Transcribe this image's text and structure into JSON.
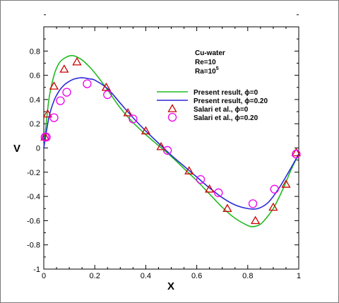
{
  "chart_data": {
    "type": "line",
    "xlabel": "X",
    "ylabel": "V",
    "xlim": [
      0,
      1
    ],
    "ylim": [
      -1,
      1
    ],
    "x_ticks": [
      "0",
      "0.2",
      "0.4",
      "0.6",
      "0.8",
      "1"
    ],
    "y_ticks": [
      "-1",
      "-0.8",
      "-0.6",
      "-0.4",
      "-0.2",
      "0",
      "0.2",
      "0.4",
      "0.6",
      "0.8"
    ],
    "x_tick_values": [
      0,
      0.2,
      0.4,
      0.6,
      0.8,
      1.0
    ],
    "y_tick_values": [
      -1,
      -0.8,
      -0.6,
      -0.4,
      -0.2,
      0,
      0.2,
      0.4,
      0.6,
      0.8
    ],
    "annotation": [
      "Cu-water",
      "Re=10",
      "Ra=10",
      "5"
    ],
    "legend_position": "upper-right",
    "series": [
      {
        "name": "Present result,  ϕ=0",
        "kind": "line",
        "color": "#22bb22",
        "x": [
          0,
          0.02,
          0.04,
          0.06,
          0.08,
          0.1,
          0.12,
          0.14,
          0.16,
          0.2,
          0.25,
          0.3,
          0.35,
          0.4,
          0.45,
          0.5,
          0.55,
          0.6,
          0.65,
          0.7,
          0.75,
          0.8,
          0.82,
          0.84,
          0.86,
          0.9,
          0.94,
          0.97,
          1.0
        ],
        "y": [
          0.0,
          0.4,
          0.6,
          0.7,
          0.74,
          0.76,
          0.76,
          0.74,
          0.71,
          0.62,
          0.48,
          0.33,
          0.21,
          0.11,
          0.02,
          -0.07,
          -0.17,
          -0.27,
          -0.38,
          -0.49,
          -0.58,
          -0.64,
          -0.65,
          -0.64,
          -0.61,
          -0.5,
          -0.33,
          -0.18,
          -0.05
        ]
      },
      {
        "name": "Present result,  ϕ=0.20",
        "kind": "line",
        "color": "#2a2ad8",
        "x": [
          0,
          0.02,
          0.04,
          0.06,
          0.08,
          0.1,
          0.12,
          0.15,
          0.18,
          0.2,
          0.25,
          0.3,
          0.35,
          0.4,
          0.45,
          0.5,
          0.55,
          0.6,
          0.65,
          0.7,
          0.75,
          0.8,
          0.84,
          0.88,
          0.92,
          0.96,
          1.0
        ],
        "y": [
          0.0,
          0.25,
          0.39,
          0.47,
          0.52,
          0.55,
          0.57,
          0.58,
          0.57,
          0.56,
          0.49,
          0.37,
          0.25,
          0.14,
          0.04,
          -0.06,
          -0.15,
          -0.24,
          -0.33,
          -0.41,
          -0.47,
          -0.5,
          -0.5,
          -0.45,
          -0.34,
          -0.2,
          -0.05
        ]
      },
      {
        "name": "Salari et al.,  ϕ=0",
        "kind": "marker",
        "marker": "triangle",
        "color": "#cc0000",
        "x": [
          0.005,
          0.015,
          0.04,
          0.08,
          0.13,
          0.245,
          0.33,
          0.4,
          0.46,
          0.57,
          0.65,
          0.72,
          0.83,
          0.9,
          0.95,
          0.99
        ],
        "y": [
          0.09,
          0.28,
          0.51,
          0.65,
          0.71,
          0.5,
          0.29,
          0.14,
          0.01,
          -0.19,
          -0.34,
          -0.5,
          -0.6,
          -0.49,
          -0.3,
          -0.04
        ]
      },
      {
        "name": "Salari et al.,  ϕ=0.20",
        "kind": "marker",
        "marker": "circle",
        "color": "#ee00ee",
        "x": [
          0.005,
          0.01,
          0.04,
          0.065,
          0.09,
          0.17,
          0.25,
          0.35,
          0.485,
          0.615,
          0.685,
          0.82,
          0.905,
          0.99
        ],
        "y": [
          0.09,
          0.09,
          0.25,
          0.39,
          0.46,
          0.53,
          0.44,
          0.24,
          -0.02,
          -0.26,
          -0.37,
          -0.46,
          -0.34,
          -0.05
        ]
      }
    ]
  }
}
